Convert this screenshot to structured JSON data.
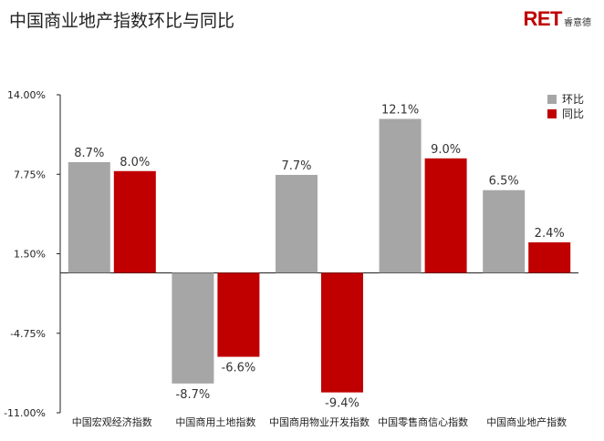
{
  "header": {
    "title": "中国商业地产指数环比与同比",
    "logo_mark": "RET",
    "logo_sub": "睿意德"
  },
  "colors": {
    "series_mom": "#a6a6a6",
    "series_yoy": "#c00000",
    "axis": "#222222"
  },
  "chart_data": {
    "type": "bar",
    "title": "中国商业地产指数环比与同比",
    "categories": [
      "中国宏观经济指数",
      "中国商用土地指数",
      "中国商用物业开发指数",
      "中国零售商信心指数",
      "中国商业地产指数"
    ],
    "series": [
      {
        "name": "环比",
        "values": [
          8.7,
          -8.7,
          7.7,
          12.1,
          6.5
        ],
        "labels": [
          "8.7%",
          "-8.7%",
          "7.7%",
          "12.1%",
          "6.5%"
        ]
      },
      {
        "name": "同比",
        "values": [
          8.0,
          -6.6,
          -9.4,
          9.0,
          2.4
        ],
        "labels": [
          "8.0%",
          "-6.6%",
          "-9.4%",
          "9.0%",
          "2.4%"
        ]
      }
    ],
    "ylim": [
      -11,
      14
    ],
    "yticks": [
      14,
      7.75,
      1.5,
      -4.75,
      -11
    ],
    "ytick_labels": [
      "14.00%",
      "7.75%",
      "1.50%",
      "-4.75%",
      "-11.00%"
    ],
    "xlabel": "",
    "ylabel": "",
    "legend_position": "top-right",
    "grid": false
  }
}
